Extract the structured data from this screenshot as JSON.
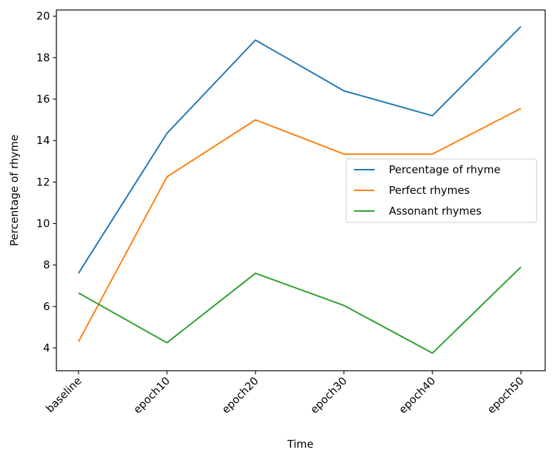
{
  "chart_data": {
    "type": "line",
    "title": "",
    "xlabel": "Time",
    "ylabel": "Percentage of rhyme",
    "categories": [
      "baseline",
      "epoch10",
      "epoch20",
      "epoch30",
      "epoch40",
      "epoch50"
    ],
    "ylim": [
      2.9,
      20.3
    ],
    "yticks": [
      4,
      6,
      8,
      10,
      12,
      14,
      16,
      18,
      20
    ],
    "grid": false,
    "legend_position": "center-right",
    "series": [
      {
        "name": "Percentage of rhyme",
        "color": "#1f77b4",
        "values": [
          7.6,
          14.35,
          18.85,
          16.4,
          15.2,
          19.5
        ]
      },
      {
        "name": "Perfect rhymes",
        "color": "#ff7f0e",
        "values": [
          4.3,
          12.25,
          15.0,
          13.35,
          13.35,
          15.55
        ]
      },
      {
        "name": "Assonant rhymes",
        "color": "#2ca02c",
        "values": [
          6.65,
          4.25,
          7.6,
          6.05,
          3.75,
          7.9
        ]
      }
    ]
  }
}
